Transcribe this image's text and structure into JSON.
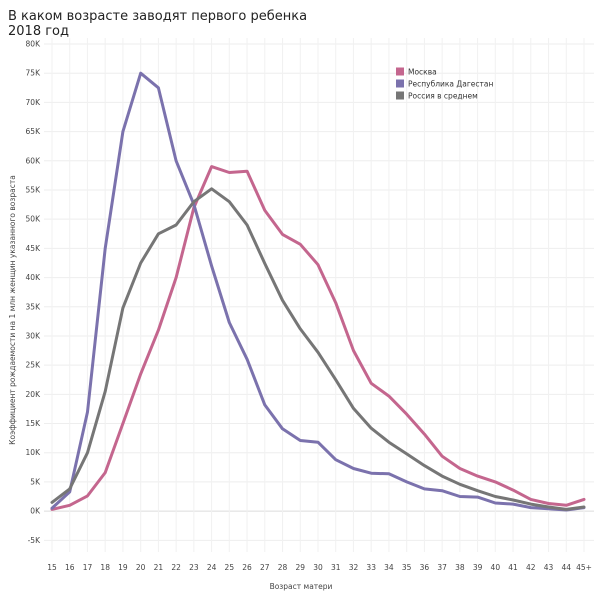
{
  "chart_data": {
    "type": "line",
    "title": "В каком возрасте заводят первого ребенка",
    "subtitle": "2018 год",
    "xlabel": "Возраст матери",
    "ylabel": "Коэффициент рождаемости на 1 млн женщин указанного возраста",
    "categories": [
      "15",
      "16",
      "17",
      "18",
      "19",
      "20",
      "21",
      "22",
      "23",
      "24",
      "25",
      "26",
      "27",
      "28",
      "29",
      "30",
      "31",
      "32",
      "33",
      "34",
      "35",
      "36",
      "37",
      "38",
      "39",
      "40",
      "41",
      "42",
      "43",
      "44",
      "45+"
    ],
    "y_ticks": [
      -5000,
      0,
      5000,
      10000,
      15000,
      20000,
      25000,
      30000,
      35000,
      40000,
      45000,
      50000,
      55000,
      60000,
      65000,
      70000,
      75000,
      80000
    ],
    "y_tick_labels": [
      "-5K",
      "0K",
      "5K",
      "10K",
      "15K",
      "20K",
      "25K",
      "30K",
      "35K",
      "40K",
      "45K",
      "50K",
      "55K",
      "60K",
      "65K",
      "70K",
      "75K",
      "80K"
    ],
    "ylim": [
      -7000,
      80000
    ],
    "grid": true,
    "legend_position": "top-right",
    "series": [
      {
        "name": "Москва",
        "color": "#c4668e",
        "values": [
          300,
          1000,
          2600,
          6600,
          15000,
          23500,
          31000,
          40000,
          52000,
          59000,
          58000,
          58200,
          51500,
          47400,
          45700,
          42200,
          35700,
          27500,
          21900,
          19700,
          16600,
          13200,
          9400,
          7300,
          6000,
          5000,
          3600,
          2000,
          1300,
          1000,
          2000
        ]
      },
      {
        "name": "Республика Дагестан",
        "color": "#7b72ad",
        "values": [
          500,
          3300,
          17000,
          45000,
          65000,
          75000,
          72500,
          60000,
          52500,
          42000,
          32300,
          26000,
          18200,
          14100,
          12100,
          11800,
          8800,
          7300,
          6500,
          6400,
          5000,
          3800,
          3500,
          2500,
          2400,
          1400,
          1200,
          600,
          400,
          200,
          600
        ]
      },
      {
        "name": "Россия в среднем",
        "color": "#767676",
        "values": [
          1500,
          3800,
          10000,
          20500,
          34800,
          42500,
          47500,
          49000,
          53000,
          55200,
          53000,
          49000,
          42400,
          36100,
          31200,
          27200,
          22500,
          17600,
          14200,
          11800,
          9800,
          7800,
          6000,
          4600,
          3500,
          2500,
          1900,
          1200,
          700,
          300,
          700
        ]
      }
    ]
  }
}
